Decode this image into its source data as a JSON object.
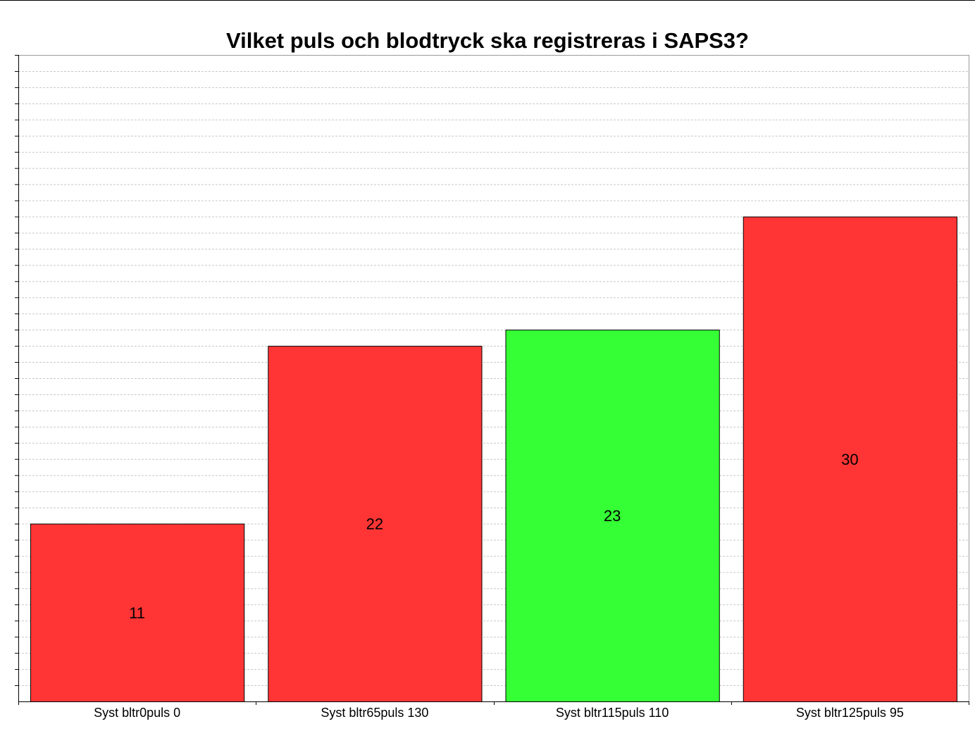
{
  "chart_data": {
    "type": "bar",
    "title": "Vilket puls och blodtryck ska registreras i SAPS3?",
    "categories": [
      "Syst bltr0puls 0",
      "Syst bltr65puls 130",
      "Syst bltr115puls 110",
      "Syst bltr125puls 95"
    ],
    "values": [
      11,
      22,
      23,
      30
    ],
    "bar_colors": [
      "#ff3535",
      "#ff3535",
      "#35ff35",
      "#ff3535"
    ],
    "ylim": [
      0,
      40
    ],
    "grid": true,
    "legend": "none",
    "xlabel": "",
    "ylabel": ""
  }
}
